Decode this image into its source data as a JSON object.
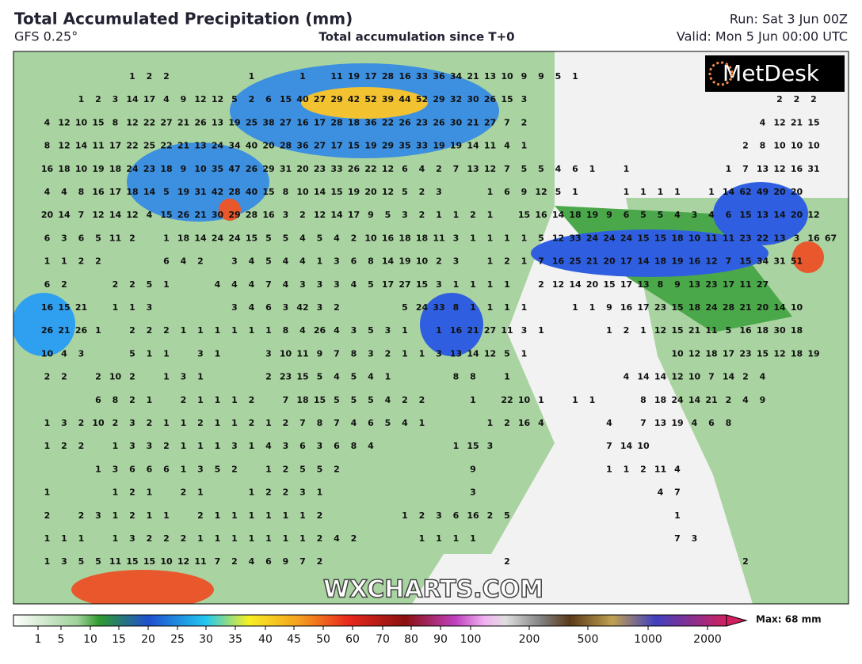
{
  "header": {
    "title": "Total Accumulated Precipitation (mm)",
    "model": "GFS 0.25°",
    "subtitle": "Total accumulation since T+0",
    "run": "Run: Sat 3 Jun 00Z",
    "valid": "Valid: Mon 5 Jun 00:00 UTC"
  },
  "logo": "MetDesk",
  "watermark": "WXCHARTS.COM",
  "colorbar": {
    "ticks": [
      1,
      5,
      10,
      15,
      20,
      25,
      30,
      35,
      40,
      45,
      50,
      60,
      70,
      80,
      90,
      100,
      200,
      500,
      1000,
      2000
    ],
    "max_label": "Max: 68 mm"
  },
  "map": {
    "rows": [
      [
        null,
        null,
        null,
        null,
        null,
        null,
        1,
        2,
        2,
        null,
        null,
        null,
        null,
        1,
        null,
        null,
        1,
        null,
        11,
        19,
        17,
        28,
        16,
        33,
        36,
        34,
        21,
        13,
        10,
        9,
        9,
        5,
        1
      ],
      [
        null,
        null,
        null,
        1,
        2,
        3,
        14,
        17,
        4,
        9,
        12,
        12,
        5,
        2,
        6,
        15,
        40,
        27,
        29,
        42,
        52,
        39,
        44,
        52,
        29,
        32,
        30,
        26,
        15,
        3,
        null,
        null,
        null,
        null,
        null,
        null,
        null,
        null,
        null,
        null,
        null,
        null,
        null,
        null,
        2,
        2,
        2
      ],
      [
        null,
        4,
        12,
        10,
        15,
        8,
        12,
        22,
        27,
        21,
        26,
        13,
        19,
        25,
        38,
        27,
        16,
        17,
        28,
        18,
        36,
        22,
        26,
        23,
        26,
        30,
        21,
        27,
        7,
        2,
        null,
        null,
        null,
        null,
        null,
        null,
        null,
        null,
        null,
        null,
        null,
        null,
        null,
        4,
        12,
        21,
        15
      ],
      [
        null,
        8,
        12,
        14,
        11,
        17,
        22,
        25,
        22,
        21,
        13,
        24,
        34,
        40,
        20,
        28,
        36,
        27,
        17,
        15,
        19,
        29,
        35,
        33,
        19,
        19,
        14,
        11,
        4,
        1,
        null,
        null,
        null,
        null,
        null,
        null,
        null,
        null,
        null,
        null,
        null,
        null,
        2,
        8,
        10,
        10,
        10
      ],
      [
        null,
        16,
        18,
        10,
        19,
        18,
        24,
        23,
        18,
        9,
        10,
        35,
        47,
        26,
        29,
        31,
        20,
        23,
        33,
        26,
        22,
        12,
        6,
        4,
        2,
        7,
        13,
        12,
        7,
        5,
        5,
        4,
        6,
        1,
        null,
        1,
        null,
        null,
        null,
        null,
        null,
        1,
        7,
        13,
        12,
        16,
        31
      ],
      [
        null,
        4,
        4,
        8,
        16,
        17,
        18,
        14,
        5,
        19,
        31,
        42,
        28,
        40,
        15,
        8,
        10,
        14,
        15,
        19,
        20,
        12,
        5,
        2,
        3,
        null,
        null,
        1,
        6,
        9,
        12,
        5,
        1,
        null,
        null,
        1,
        1,
        1,
        1,
        null,
        1,
        14,
        62,
        49,
        20,
        20
      ],
      [
        null,
        20,
        14,
        7,
        12,
        14,
        12,
        4,
        15,
        26,
        21,
        30,
        29,
        28,
        16,
        3,
        2,
        12,
        14,
        17,
        9,
        5,
        3,
        2,
        1,
        1,
        2,
        1,
        null,
        15,
        16,
        14,
        18,
        19,
        9,
        6,
        5,
        5,
        4,
        3,
        4,
        6,
        15,
        13,
        14,
        20,
        12
      ],
      [
        null,
        6,
        3,
        6,
        5,
        11,
        2,
        null,
        1,
        18,
        14,
        24,
        24,
        15,
        5,
        5,
        4,
        5,
        4,
        2,
        10,
        16,
        18,
        18,
        11,
        3,
        1,
        1,
        1,
        1,
        5,
        12,
        33,
        24,
        24,
        24,
        15,
        15,
        18,
        10,
        11,
        11,
        23,
        22,
        13,
        3,
        16,
        67
      ],
      [
        null,
        1,
        1,
        2,
        2,
        null,
        null,
        null,
        6,
        4,
        2,
        null,
        3,
        4,
        5,
        4,
        4,
        1,
        3,
        6,
        8,
        14,
        19,
        10,
        2,
        3,
        null,
        1,
        2,
        1,
        7,
        16,
        25,
        21,
        20,
        17,
        14,
        18,
        19,
        16,
        12,
        7,
        15,
        34,
        31,
        51
      ],
      [
        null,
        6,
        2,
        null,
        null,
        2,
        2,
        5,
        1,
        null,
        null,
        4,
        4,
        4,
        7,
        4,
        3,
        3,
        3,
        4,
        5,
        17,
        27,
        15,
        3,
        1,
        1,
        1,
        1,
        null,
        2,
        12,
        14,
        20,
        15,
        17,
        13,
        8,
        9,
        13,
        23,
        17,
        11,
        27
      ],
      [
        null,
        16,
        15,
        21,
        null,
        1,
        1,
        3,
        null,
        null,
        null,
        null,
        3,
        4,
        6,
        3,
        42,
        3,
        2,
        null,
        null,
        null,
        5,
        24,
        33,
        8,
        1,
        1,
        1,
        1,
        null,
        null,
        1,
        1,
        9,
        16,
        17,
        23,
        15,
        18,
        24,
        28,
        21,
        20,
        14,
        10
      ],
      [
        null,
        26,
        21,
        26,
        1,
        null,
        2,
        2,
        2,
        1,
        1,
        1,
        1,
        1,
        1,
        8,
        4,
        26,
        4,
        3,
        5,
        3,
        1,
        null,
        1,
        16,
        21,
        27,
        11,
        3,
        1,
        null,
        null,
        null,
        1,
        2,
        1,
        12,
        15,
        21,
        11,
        5,
        16,
        18,
        30,
        18
      ],
      [
        null,
        10,
        4,
        3,
        null,
        null,
        5,
        1,
        1,
        null,
        3,
        1,
        null,
        null,
        3,
        10,
        11,
        9,
        7,
        8,
        3,
        2,
        1,
        1,
        3,
        13,
        14,
        12,
        5,
        1,
        null,
        null,
        null,
        null,
        null,
        null,
        null,
        null,
        10,
        12,
        18,
        17,
        23,
        15,
        12,
        18,
        19
      ],
      [
        null,
        2,
        2,
        null,
        2,
        10,
        2,
        null,
        1,
        3,
        1,
        null,
        null,
        null,
        2,
        23,
        15,
        5,
        4,
        5,
        4,
        1,
        null,
        null,
        null,
        8,
        8,
        null,
        1,
        null,
        null,
        null,
        null,
        null,
        null,
        4,
        14,
        14,
        12,
        10,
        7,
        14,
        2,
        4
      ],
      [
        null,
        null,
        null,
        null,
        6,
        8,
        2,
        1,
        null,
        2,
        1,
        1,
        1,
        2,
        null,
        7,
        18,
        15,
        5,
        5,
        5,
        4,
        2,
        2,
        null,
        null,
        1,
        null,
        22,
        10,
        1,
        null,
        1,
        1,
        null,
        null,
        8,
        18,
        24,
        14,
        21,
        2,
        4,
        9
      ],
      [
        null,
        1,
        3,
        2,
        10,
        2,
        3,
        2,
        1,
        1,
        2,
        1,
        1,
        2,
        1,
        2,
        7,
        8,
        7,
        4,
        6,
        5,
        4,
        1,
        null,
        null,
        null,
        1,
        2,
        16,
        4,
        null,
        null,
        null,
        4,
        null,
        7,
        13,
        19,
        4,
        6,
        8
      ],
      [
        null,
        1,
        2,
        2,
        null,
        1,
        3,
        3,
        2,
        1,
        1,
        1,
        3,
        1,
        4,
        3,
        6,
        3,
        6,
        8,
        4,
        null,
        null,
        null,
        null,
        1,
        15,
        3,
        null,
        null,
        null,
        null,
        null,
        null,
        7,
        14,
        10
      ],
      [
        null,
        null,
        null,
        null,
        1,
        3,
        6,
        6,
        6,
        1,
        3,
        5,
        2,
        null,
        1,
        2,
        5,
        5,
        2,
        null,
        null,
        null,
        null,
        null,
        null,
        null,
        9,
        null,
        null,
        null,
        null,
        null,
        null,
        null,
        1,
        1,
        2,
        11,
        4
      ],
      [
        null,
        1,
        null,
        null,
        null,
        1,
        2,
        1,
        null,
        2,
        1,
        null,
        null,
        1,
        2,
        2,
        3,
        1,
        null,
        null,
        null,
        null,
        null,
        null,
        null,
        null,
        3,
        null,
        null,
        null,
        null,
        null,
        null,
        null,
        null,
        null,
        null,
        4,
        7
      ],
      [
        null,
        2,
        null,
        2,
        3,
        1,
        2,
        1,
        1,
        null,
        2,
        1,
        1,
        1,
        1,
        1,
        1,
        2,
        null,
        null,
        null,
        null,
        1,
        2,
        3,
        6,
        16,
        2,
        5,
        null,
        null,
        null,
        null,
        null,
        null,
        null,
        null,
        null,
        1
      ],
      [
        null,
        1,
        1,
        1,
        null,
        1,
        3,
        2,
        2,
        2,
        1,
        1,
        1,
        1,
        1,
        1,
        1,
        2,
        4,
        2,
        null,
        null,
        null,
        1,
        1,
        1,
        1,
        null,
        null,
        null,
        null,
        null,
        null,
        null,
        null,
        null,
        null,
        null,
        7,
        3
      ],
      [
        null,
        1,
        3,
        5,
        5,
        11,
        15,
        15,
        10,
        12,
        11,
        7,
        2,
        4,
        6,
        9,
        7,
        2,
        null,
        null,
        null,
        null,
        null,
        null,
        null,
        null,
        null,
        null,
        2,
        null,
        null,
        null,
        null,
        null,
        null,
        null,
        null,
        null,
        null,
        null,
        null,
        null,
        2
      ]
    ]
  }
}
